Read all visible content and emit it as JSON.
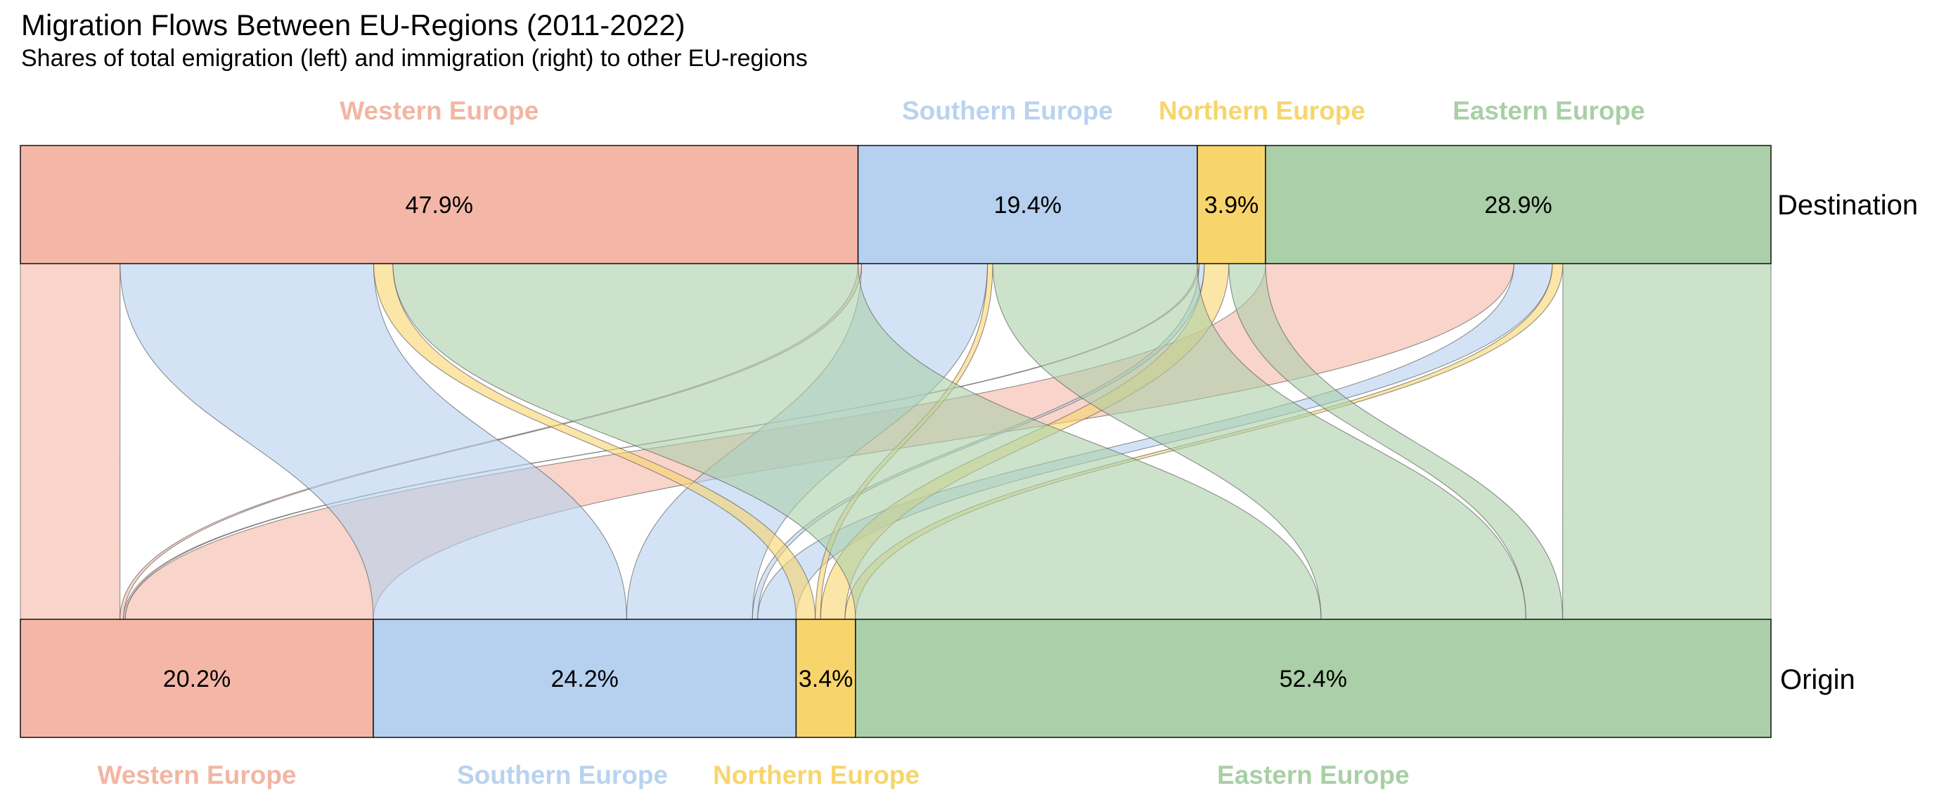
{
  "chart_data": {
    "type": "sankey",
    "title": "Migration Flows Between EU-Regions (2011-2022)",
    "subtitle": "Shares of total emigration (left) and immigration (right) to other EU-regions",
    "origin_label": "Origin",
    "destination_label": "Destination",
    "regions": [
      "Western Europe",
      "Southern Europe",
      "Northern Europe",
      "Eastern Europe"
    ],
    "colors": {
      "Western Europe": "#f4b7a7",
      "Southern Europe": "#b6d0ef",
      "Northern Europe": "#f8d46d",
      "Eastern Europe": "#abcfa8"
    },
    "label_colors": {
      "Western Europe": "#f2b6a3",
      "Southern Europe": "#b9d3ef",
      "Northern Europe": "#f7d56c",
      "Eastern Europe": "#a9cfa6"
    },
    "destination_shares": [
      {
        "region": "Western Europe",
        "value": 47.9,
        "label": "47.9%"
      },
      {
        "region": "Southern Europe",
        "value": 19.4,
        "label": "19.4%"
      },
      {
        "region": "Northern Europe",
        "value": 3.9,
        "label": "3.9%"
      },
      {
        "region": "Eastern Europe",
        "value": 28.9,
        "label": "28.9%"
      }
    ],
    "origin_shares": [
      {
        "region": "Western Europe",
        "value": 20.2,
        "label": "20.2%"
      },
      {
        "region": "Southern Europe",
        "value": 24.2,
        "label": "24.2%"
      },
      {
        "region": "Northern Europe",
        "value": 3.4,
        "label": "3.4%"
      },
      {
        "region": "Eastern Europe",
        "value": 52.4,
        "label": "52.4%"
      }
    ],
    "flows": [
      {
        "from": "Western Europe",
        "to": "Western Europe",
        "value": 5.7
      },
      {
        "from": "Western Europe",
        "to": "Southern Europe",
        "value": 0.2
      },
      {
        "from": "Western Europe",
        "to": "Northern Europe",
        "value": 0.1
      },
      {
        "from": "Western Europe",
        "to": "Eastern Europe",
        "value": 14.2
      },
      {
        "from": "Southern Europe",
        "to": "Western Europe",
        "value": 14.5
      },
      {
        "from": "Southern Europe",
        "to": "Southern Europe",
        "value": 7.2
      },
      {
        "from": "Southern Europe",
        "to": "Northern Europe",
        "value": 0.3
      },
      {
        "from": "Southern Europe",
        "to": "Eastern Europe",
        "value": 2.2
      },
      {
        "from": "Northern Europe",
        "to": "Western Europe",
        "value": 1.1
      },
      {
        "from": "Northern Europe",
        "to": "Southern Europe",
        "value": 0.3
      },
      {
        "from": "Northern Europe",
        "to": "Northern Europe",
        "value": 1.4
      },
      {
        "from": "Northern Europe",
        "to": "Eastern Europe",
        "value": 0.6
      },
      {
        "from": "Eastern Europe",
        "to": "Western Europe",
        "value": 26.6
      },
      {
        "from": "Eastern Europe",
        "to": "Southern Europe",
        "value": 11.7
      },
      {
        "from": "Eastern Europe",
        "to": "Northern Europe",
        "value": 2.1
      },
      {
        "from": "Eastern Europe",
        "to": "Eastern Europe",
        "value": 11.9
      }
    ]
  }
}
